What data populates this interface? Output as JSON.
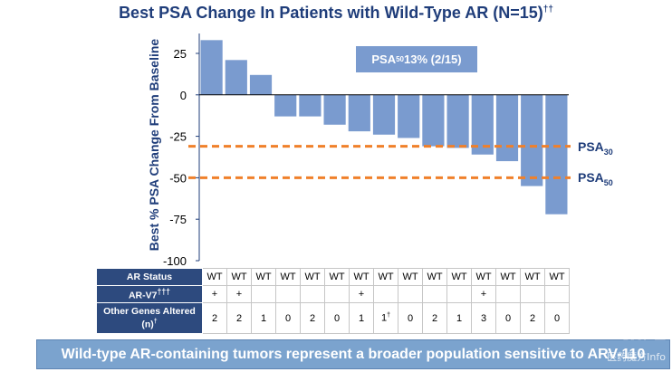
{
  "chart_data": {
    "type": "bar",
    "title": "Best PSA Change In Patients with Wild-Type AR (N=15)",
    "title_footnote": "††",
    "ylabel": "Best % PSA Change From Baseline",
    "xlabel": "",
    "ylim": [
      -100,
      37
    ],
    "yticks": [
      25,
      0,
      -25,
      -50,
      -75,
      -100
    ],
    "values": [
      33,
      21,
      12,
      -13,
      -13,
      -18,
      -22,
      -24,
      -26,
      -31,
      -32,
      -36,
      -40,
      -55,
      -72
    ],
    "thresholds": [
      {
        "value": -31,
        "label": "PSA",
        "sub": "30"
      },
      {
        "value": -50,
        "label": "PSA",
        "sub": "50"
      }
    ],
    "annotation": {
      "prefix": "PSA",
      "sub": "50",
      "text": " 13% (2/15)"
    },
    "bar_color": "#7a9bcf",
    "threshold_color": "#f0802a",
    "axis_color": "#1f3d7a"
  },
  "table": {
    "rows": [
      {
        "header": "AR Status",
        "header_sup": "",
        "cells": [
          "WT",
          "WT",
          "WT",
          "WT",
          "WT",
          "WT",
          "WT",
          "WT",
          "WT",
          "WT",
          "WT",
          "WT",
          "WT",
          "WT",
          "WT"
        ]
      },
      {
        "header": "AR-V7",
        "header_sup": "†††",
        "cells": [
          "+",
          "+",
          "",
          "",
          "",
          "",
          "+",
          "",
          "",
          "",
          "",
          "+",
          "",
          "",
          ""
        ]
      },
      {
        "header": "Other Genes Altered (n)",
        "header_sup": "†",
        "cells": [
          "2",
          "2",
          "1",
          "0",
          "2",
          "0",
          "1",
          "1†",
          "0",
          "2",
          "1",
          "3",
          "0",
          "2",
          "0"
        ]
      }
    ]
  },
  "banner": {
    "text": "Wild-type AR-containing tumors represent a broader population sensitive to ARV-110"
  },
  "watermark": {
    "line1": "老虎社区",
    "line2": "医药魔方Info"
  }
}
